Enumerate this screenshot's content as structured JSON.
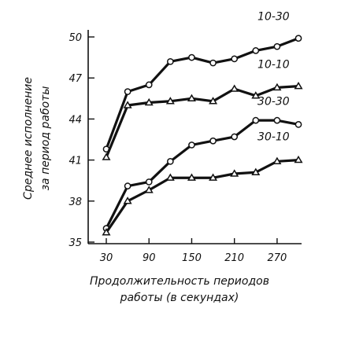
{
  "chart_data": {
    "type": "line",
    "xlabel_lines": [
      "Продолжительность периодов",
      "работы (в секундах)"
    ],
    "ylabel_lines": [
      "Среднее исполнение",
      "за период работы"
    ],
    "x_ticks": [
      30,
      90,
      150,
      210,
      270
    ],
    "y_ticks": [
      35,
      38,
      41,
      44,
      47,
      50
    ],
    "xlim": [
      30,
      290
    ],
    "ylim": [
      35,
      50
    ],
    "grid": false,
    "legend": "none",
    "series": [
      {
        "name": "10-30",
        "marker": "circle",
        "x": [
          30,
          60,
          90,
          120,
          150,
          180,
          210,
          240,
          270,
          300
        ],
        "y": [
          41.8,
          46.0,
          46.5,
          48.2,
          48.5,
          48.1,
          48.4,
          49.0,
          49.3,
          49.9
        ]
      },
      {
        "name": "10-10",
        "marker": "triangle",
        "x": [
          30,
          60,
          90,
          120,
          150,
          180,
          210,
          240,
          270,
          300
        ],
        "y": [
          41.2,
          45.0,
          45.2,
          45.3,
          45.5,
          45.3,
          46.2,
          45.7,
          46.3,
          46.4
        ]
      },
      {
        "name": "30-30",
        "marker": "circle",
        "x": [
          30,
          60,
          90,
          120,
          150,
          180,
          210,
          240,
          270,
          300
        ],
        "y": [
          36.0,
          39.1,
          39.4,
          40.9,
          42.1,
          42.4,
          42.7,
          43.9,
          43.9,
          43.6
        ]
      },
      {
        "name": "30-10",
        "marker": "triangle",
        "x": [
          30,
          60,
          90,
          120,
          150,
          180,
          210,
          240,
          270,
          300
        ],
        "y": [
          35.7,
          38.0,
          38.8,
          39.7,
          39.7,
          39.7,
          40.0,
          40.1,
          40.9,
          41.0
        ]
      }
    ]
  }
}
